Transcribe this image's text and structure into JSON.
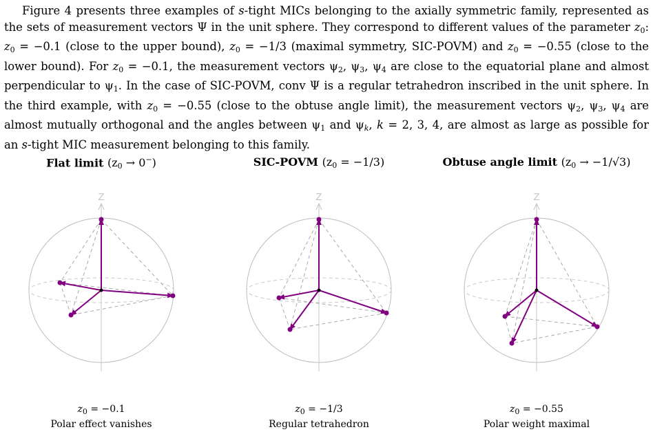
{
  "paragraph": {
    "s1": "Figure 4 presents three examples of ",
    "s_italic": "s",
    "s2": "-tight MICs belonging to the axially symmetric family, represented as the sets of measurement vectors Ψ in the unit sphere. They correspond to different values of the parameter ",
    "z0": "z",
    "s3": ": ",
    "s4": " = −0.1 (close to the upper bound), ",
    "s5": " = −1/3 (maximal symmetry, SIC-POVM) and ",
    "s6": " = −0.55 (close to the lower bound). For ",
    "s7": " = −0.1, the measurement vectors ψ",
    "s8": ", ψ",
    "s9": ", ψ",
    "s10": " are close to the equatorial plane and almost perpendicular to ψ",
    "s11": ". In the case of SIC-POVM, conv Ψ is a regular tetrahedron inscribed in the unit sphere. In the third example, with ",
    "s12": " = −0.55 (close to the obtuse angle limit), the measurement vectors ψ",
    "s13": ", ψ",
    "s14": ", ψ",
    "s15": " are almost mutually orthogonal and the angles between ψ",
    "s16": " and ψ",
    "s17": ", ",
    "s17k": "k",
    "s18": " = 2, 3, 4, are almost as large as possible for an ",
    "s19": "-tight MIC measurement belonging to this family."
  },
  "figures": [
    {
      "title_bold": "Flat limit",
      "title_math": "(z",
      "title_math_end": " → 0",
      "title_sup": "−",
      "title_close": ")",
      "axis_label": "Z",
      "caption_line1_pre": "z",
      "caption_line1_post": " = −0.1",
      "caption_line2": "Polar effect vanishes",
      "z0": -0.1
    },
    {
      "title_bold": "SIC-POVM",
      "title_math": "(z",
      "title_math_end": " = −1/3)",
      "title_sup": "",
      "title_close": "",
      "axis_label": "Z",
      "caption_line1_pre": "z",
      "caption_line1_post": " = −1/3",
      "caption_line2": "Regular tetrahedron",
      "z0": -0.3333
    },
    {
      "title_bold": "Obtuse angle limit",
      "title_math": "(z",
      "title_math_end": " → −1/√3)",
      "title_sup": "",
      "title_close": "",
      "axis_label": "Z",
      "caption_line1_pre": "z",
      "caption_line1_post": " = −0.55",
      "caption_line2": "Polar weight maximal",
      "z0": -0.55
    }
  ],
  "colors": {
    "vector": "#800080",
    "sphere": "#bdbdbd",
    "dashed": "#a8a8a8",
    "equator": "#c8c8c8",
    "axis": "#c4c4c4",
    "center": "#000000"
  }
}
